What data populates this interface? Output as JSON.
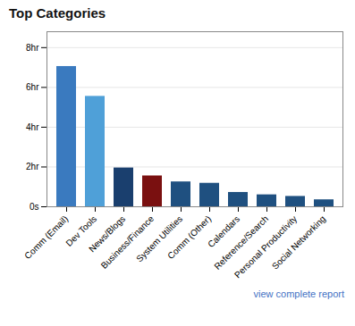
{
  "chart_data": {
    "type": "bar",
    "title": "Top Categories",
    "categories": [
      "Comm (Email)",
      "Dev Tools",
      "News/Blogs",
      "Business/Finance",
      "System Utilities",
      "Comm (Other)",
      "Calendars",
      "Reference/Search",
      "Personal Productivity",
      "Social Networking"
    ],
    "values": [
      7.05,
      5.55,
      1.95,
      1.55,
      1.25,
      1.18,
      0.72,
      0.6,
      0.52,
      0.35
    ],
    "colors": [
      "#3a7abf",
      "#4fa0d8",
      "#1a3f6e",
      "#7a1010",
      "#1f5080",
      "#1f5080",
      "#1f5080",
      "#1f5080",
      "#1f5080",
      "#1f5080"
    ],
    "ylim": [
      0,
      8.8
    ],
    "yticks": [
      {
        "value": 0,
        "label": "0s"
      },
      {
        "value": 2,
        "label": "2hr"
      },
      {
        "value": 4,
        "label": "4hr"
      },
      {
        "value": 6,
        "label": "6hr"
      },
      {
        "value": 8,
        "label": "8hr"
      }
    ],
    "grid": true,
    "annotations": [
      {
        "text": "view complete report",
        "color": "#4472c4"
      }
    ]
  }
}
